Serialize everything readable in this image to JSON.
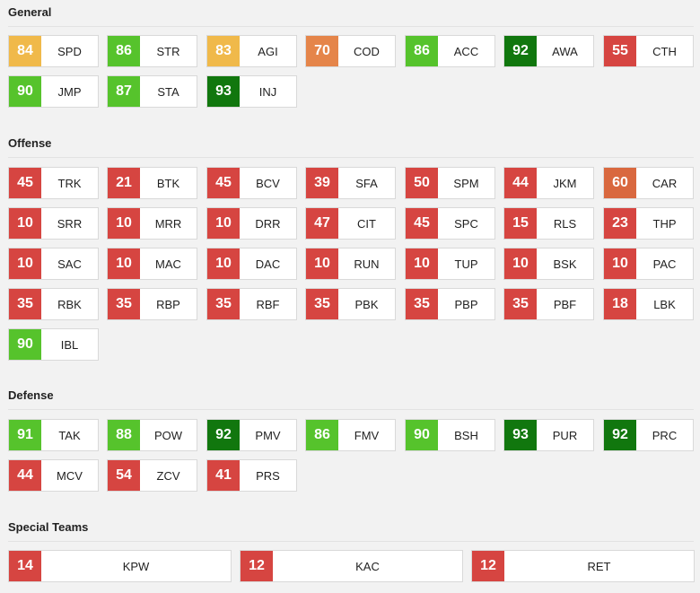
{
  "colors": {
    "red": "#d64541",
    "orange": "#e5854a",
    "dark_orange": "#d9683f",
    "yellow": "#f0b94a",
    "light_green": "#56c32c",
    "dark_green": "#11770e"
  },
  "sections": [
    {
      "title": "General",
      "rows": [
        [
          {
            "value": "84",
            "label": "SPD",
            "color": "#f0b94a"
          },
          {
            "value": "86",
            "label": "STR",
            "color": "#56c32c"
          },
          {
            "value": "83",
            "label": "AGI",
            "color": "#f0b94a"
          },
          {
            "value": "70",
            "label": "COD",
            "color": "#e5854a"
          },
          {
            "value": "86",
            "label": "ACC",
            "color": "#56c32c"
          },
          {
            "value": "92",
            "label": "AWA",
            "color": "#11770e"
          },
          {
            "value": "55",
            "label": "CTH",
            "color": "#d64541"
          }
        ],
        [
          {
            "value": "90",
            "label": "JMP",
            "color": "#56c32c"
          },
          {
            "value": "87",
            "label": "STA",
            "color": "#56c32c"
          },
          {
            "value": "93",
            "label": "INJ",
            "color": "#11770e"
          }
        ]
      ]
    },
    {
      "title": "Offense",
      "rows": [
        [
          {
            "value": "45",
            "label": "TRK",
            "color": "#d64541"
          },
          {
            "value": "21",
            "label": "BTK",
            "color": "#d64541"
          },
          {
            "value": "45",
            "label": "BCV",
            "color": "#d64541"
          },
          {
            "value": "39",
            "label": "SFA",
            "color": "#d64541"
          },
          {
            "value": "50",
            "label": "SPM",
            "color": "#d64541"
          },
          {
            "value": "44",
            "label": "JKM",
            "color": "#d64541"
          },
          {
            "value": "60",
            "label": "CAR",
            "color": "#d9683f"
          }
        ],
        [
          {
            "value": "10",
            "label": "SRR",
            "color": "#d64541"
          },
          {
            "value": "10",
            "label": "MRR",
            "color": "#d64541"
          },
          {
            "value": "10",
            "label": "DRR",
            "color": "#d64541"
          },
          {
            "value": "47",
            "label": "CIT",
            "color": "#d64541"
          },
          {
            "value": "45",
            "label": "SPC",
            "color": "#d64541"
          },
          {
            "value": "15",
            "label": "RLS",
            "color": "#d64541"
          },
          {
            "value": "23",
            "label": "THP",
            "color": "#d64541"
          }
        ],
        [
          {
            "value": "10",
            "label": "SAC",
            "color": "#d64541"
          },
          {
            "value": "10",
            "label": "MAC",
            "color": "#d64541"
          },
          {
            "value": "10",
            "label": "DAC",
            "color": "#d64541"
          },
          {
            "value": "10",
            "label": "RUN",
            "color": "#d64541"
          },
          {
            "value": "10",
            "label": "TUP",
            "color": "#d64541"
          },
          {
            "value": "10",
            "label": "BSK",
            "color": "#d64541"
          },
          {
            "value": "10",
            "label": "PAC",
            "color": "#d64541"
          }
        ],
        [
          {
            "value": "35",
            "label": "RBK",
            "color": "#d64541"
          },
          {
            "value": "35",
            "label": "RBP",
            "color": "#d64541"
          },
          {
            "value": "35",
            "label": "RBF",
            "color": "#d64541"
          },
          {
            "value": "35",
            "label": "PBK",
            "color": "#d64541"
          },
          {
            "value": "35",
            "label": "PBP",
            "color": "#d64541"
          },
          {
            "value": "35",
            "label": "PBF",
            "color": "#d64541"
          },
          {
            "value": "18",
            "label": "LBK",
            "color": "#d64541"
          }
        ],
        [
          {
            "value": "90",
            "label": "IBL",
            "color": "#56c32c"
          }
        ]
      ]
    },
    {
      "title": "Defense",
      "rows": [
        [
          {
            "value": "91",
            "label": "TAK",
            "color": "#56c32c"
          },
          {
            "value": "88",
            "label": "POW",
            "color": "#56c32c"
          },
          {
            "value": "92",
            "label": "PMV",
            "color": "#11770e"
          },
          {
            "value": "86",
            "label": "FMV",
            "color": "#56c32c"
          },
          {
            "value": "90",
            "label": "BSH",
            "color": "#56c32c"
          },
          {
            "value": "93",
            "label": "PUR",
            "color": "#11770e"
          },
          {
            "value": "92",
            "label": "PRC",
            "color": "#11770e"
          }
        ],
        [
          {
            "value": "44",
            "label": "MCV",
            "color": "#d64541"
          },
          {
            "value": "54",
            "label": "ZCV",
            "color": "#d64541"
          },
          {
            "value": "41",
            "label": "PRS",
            "color": "#d64541"
          }
        ]
      ]
    },
    {
      "title": "Special Teams",
      "wide": true,
      "rows": [
        [
          {
            "value": "14",
            "label": "KPW",
            "color": "#d64541"
          },
          {
            "value": "12",
            "label": "KAC",
            "color": "#d64541"
          },
          {
            "value": "12",
            "label": "RET",
            "color": "#d64541"
          }
        ]
      ]
    }
  ]
}
